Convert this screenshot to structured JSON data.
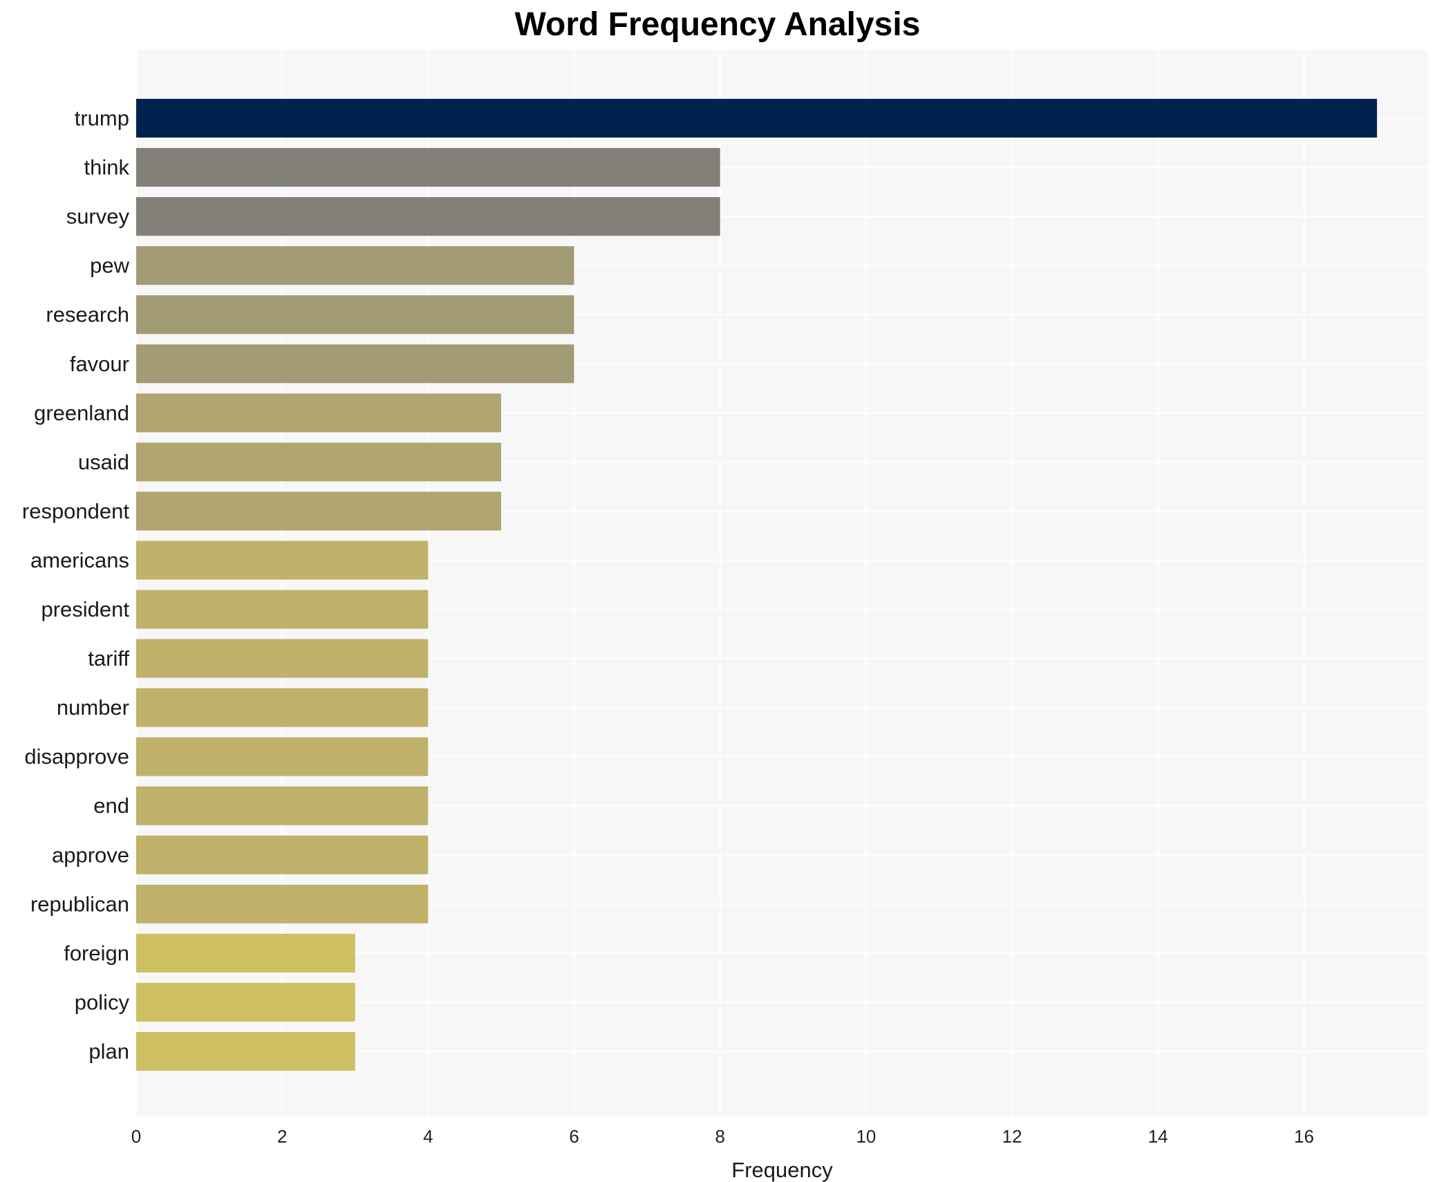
{
  "chart_data": {
    "type": "bar",
    "orientation": "horizontal",
    "title": "Word Frequency Analysis",
    "xlabel": "Frequency",
    "ylabel": "",
    "xlim": [
      0,
      17.7
    ],
    "xticks": [
      0,
      2,
      4,
      6,
      8,
      10,
      12,
      14,
      16
    ],
    "grid": true,
    "categories": [
      "trump",
      "think",
      "survey",
      "pew",
      "research",
      "favour",
      "greenland",
      "usaid",
      "respondent",
      "americans",
      "president",
      "tariff",
      "number",
      "disapprove",
      "end",
      "approve",
      "republican",
      "foreign",
      "policy",
      "plan"
    ],
    "values": [
      17,
      8,
      8,
      6,
      6,
      6,
      5,
      5,
      5,
      4,
      4,
      4,
      4,
      4,
      4,
      4,
      4,
      3,
      3,
      3
    ],
    "colors": [
      "#00224e",
      "#838079",
      "#838079",
      "#a39b75",
      "#a39b75",
      "#a39b75",
      "#b0a470",
      "#b0a470",
      "#b0a470",
      "#c0b16b",
      "#c0b16b",
      "#c0b16b",
      "#c0b16b",
      "#c0b16b",
      "#c0b16b",
      "#c0b16b",
      "#c0b16b",
      "#cfbf63",
      "#cfbf63",
      "#cfbf63"
    ],
    "plot_background": "#f7f7f7"
  }
}
